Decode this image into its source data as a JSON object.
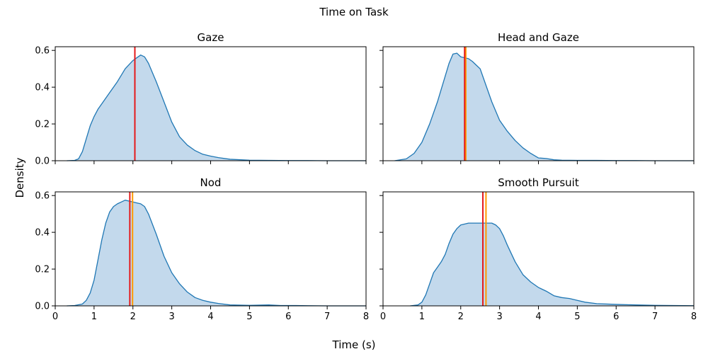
{
  "chart_data": {
    "type": "area",
    "title": "Time on Task",
    "xlabel": "Time (s)",
    "ylabel": "Density",
    "xlim": [
      0,
      8
    ],
    "ylim": [
      0,
      0.62
    ],
    "xticks": [
      "0",
      "1",
      "2",
      "3",
      "4",
      "5",
      "6",
      "7",
      "8"
    ],
    "yticks": [
      "0.0",
      "0.2",
      "0.4",
      "0.6"
    ],
    "grid": false,
    "colors": {
      "fill": "#c3d9ec",
      "line": "#1f77b4",
      "median": "#e41a1c",
      "mean": "#ff9900"
    },
    "panels": [
      {
        "title": "Gaze",
        "median": 2.05,
        "mean": 2.05,
        "x": [
          0.3,
          0.5,
          0.6,
          0.7,
          0.8,
          0.9,
          1.0,
          1.1,
          1.2,
          1.4,
          1.6,
          1.8,
          2.0,
          2.1,
          2.2,
          2.3,
          2.4,
          2.6,
          2.8,
          3.0,
          3.2,
          3.4,
          3.6,
          3.8,
          4.0,
          4.2,
          4.5,
          5.0,
          5.5,
          6.0,
          6.5,
          7.0,
          7.5,
          8.0
        ],
        "y": [
          0.0,
          0.002,
          0.01,
          0.05,
          0.12,
          0.19,
          0.24,
          0.28,
          0.31,
          0.37,
          0.43,
          0.5,
          0.545,
          0.56,
          0.575,
          0.565,
          0.53,
          0.43,
          0.32,
          0.21,
          0.13,
          0.085,
          0.055,
          0.035,
          0.025,
          0.017,
          0.008,
          0.003,
          0.002,
          0.001,
          0.001,
          0.0,
          0.0,
          0.0
        ]
      },
      {
        "title": "Head and Gaze",
        "median": 2.1,
        "mean": 2.13,
        "x": [
          0.3,
          0.6,
          0.8,
          1.0,
          1.2,
          1.4,
          1.6,
          1.7,
          1.8,
          1.9,
          2.0,
          2.1,
          2.2,
          2.3,
          2.4,
          2.5,
          2.6,
          2.8,
          3.0,
          3.2,
          3.4,
          3.6,
          3.8,
          4.0,
          4.2,
          4.4,
          4.6,
          5.0,
          5.5,
          6.0,
          6.5,
          7.0,
          8.0
        ],
        "y": [
          0.0,
          0.01,
          0.04,
          0.1,
          0.2,
          0.32,
          0.46,
          0.53,
          0.58,
          0.585,
          0.565,
          0.56,
          0.555,
          0.54,
          0.52,
          0.5,
          0.44,
          0.32,
          0.22,
          0.16,
          0.11,
          0.07,
          0.04,
          0.015,
          0.012,
          0.005,
          0.003,
          0.002,
          0.002,
          0.001,
          0.001,
          0.0,
          0.0
        ]
      },
      {
        "title": "Nod",
        "median": 1.92,
        "mean": 1.99,
        "x": [
          0.3,
          0.5,
          0.7,
          0.8,
          0.9,
          1.0,
          1.1,
          1.2,
          1.3,
          1.4,
          1.5,
          1.6,
          1.7,
          1.8,
          1.9,
          2.0,
          2.1,
          2.2,
          2.3,
          2.4,
          2.6,
          2.8,
          3.0,
          3.2,
          3.4,
          3.6,
          3.8,
          4.0,
          4.2,
          4.5,
          5.0,
          5.5,
          5.8,
          6.2,
          6.5,
          7.0,
          8.0
        ],
        "y": [
          0.0,
          0.002,
          0.01,
          0.03,
          0.07,
          0.14,
          0.25,
          0.36,
          0.45,
          0.51,
          0.54,
          0.555,
          0.565,
          0.575,
          0.57,
          0.565,
          0.56,
          0.555,
          0.54,
          0.5,
          0.39,
          0.27,
          0.18,
          0.12,
          0.075,
          0.045,
          0.03,
          0.02,
          0.013,
          0.005,
          0.003,
          0.005,
          0.002,
          0.002,
          0.001,
          0.0,
          0.0
        ]
      },
      {
        "title": "Smooth Pursuit",
        "median": 2.57,
        "mean": 2.65,
        "x": [
          0.7,
          0.9,
          1.0,
          1.1,
          1.2,
          1.3,
          1.4,
          1.5,
          1.6,
          1.7,
          1.8,
          1.9,
          2.0,
          2.2,
          2.4,
          2.6,
          2.8,
          2.9,
          3.0,
          3.1,
          3.2,
          3.4,
          3.6,
          3.8,
          4.0,
          4.2,
          4.4,
          4.6,
          4.8,
          5.0,
          5.2,
          5.5,
          6.0,
          6.5,
          7.0,
          7.5,
          8.0
        ],
        "y": [
          0.0,
          0.005,
          0.02,
          0.06,
          0.12,
          0.18,
          0.21,
          0.24,
          0.28,
          0.34,
          0.39,
          0.42,
          0.44,
          0.45,
          0.45,
          0.45,
          0.45,
          0.44,
          0.42,
          0.38,
          0.33,
          0.24,
          0.17,
          0.13,
          0.1,
          0.08,
          0.055,
          0.045,
          0.04,
          0.03,
          0.02,
          0.012,
          0.008,
          0.005,
          0.003,
          0.002,
          0.001
        ]
      }
    ]
  }
}
